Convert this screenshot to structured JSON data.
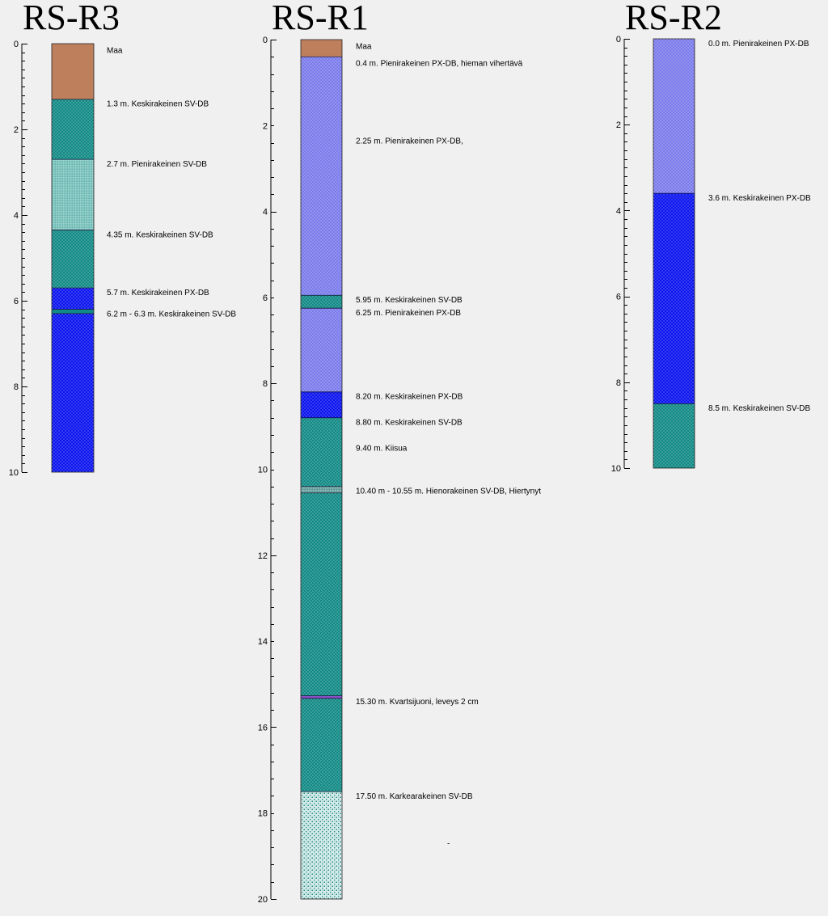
{
  "chart_data": [
    {
      "type": "borehole-log",
      "title": "RS-R3",
      "depth_range": [
        0,
        10
      ],
      "ticks": [
        0,
        2,
        4,
        6,
        8,
        10
      ],
      "layers": [
        {
          "from": 0,
          "to": 1.3,
          "color": "#be805c",
          "pattern": "none"
        },
        {
          "from": 1.3,
          "to": 2.7,
          "color": "#128a85",
          "pattern": "dots"
        },
        {
          "from": 2.7,
          "to": 4.35,
          "color": "#7fc5c0",
          "pattern": "fine"
        },
        {
          "from": 4.35,
          "to": 5.7,
          "color": "#128a85",
          "pattern": "dots"
        },
        {
          "from": 5.7,
          "to": 6.2,
          "color": "#0b14ee",
          "pattern": "dots"
        },
        {
          "from": 6.2,
          "to": 6.3,
          "color": "#128a85",
          "pattern": "none"
        },
        {
          "from": 6.3,
          "to": 10,
          "color": "#0b14ee",
          "pattern": "dots"
        }
      ],
      "annotations": [
        {
          "depth": 0.15,
          "text": "Maa"
        },
        {
          "depth": 1.4,
          "text": "1.3 m. Keskirakeinen SV-DB"
        },
        {
          "depth": 2.8,
          "text": "2.7 m. Pienirakeinen SV-DB"
        },
        {
          "depth": 4.45,
          "text": "4.35 m. Keskirakeinen SV-DB"
        },
        {
          "depth": 5.8,
          "text": "5.7 m. Keskirakeinen PX-DB"
        },
        {
          "depth": 6.3,
          "text": "6.2 m - 6.3 m. Keskirakeinen SV-DB"
        }
      ]
    },
    {
      "type": "borehole-log",
      "title": "RS-R1",
      "depth_range": [
        0,
        20
      ],
      "ticks": [
        0,
        2,
        4,
        6,
        8,
        10,
        12,
        14,
        16,
        18,
        20
      ],
      "layers": [
        {
          "from": 0,
          "to": 0.4,
          "color": "#be805c",
          "pattern": "none"
        },
        {
          "from": 0.4,
          "to": 5.95,
          "color": "#7b7bec",
          "pattern": "dots"
        },
        {
          "from": 5.95,
          "to": 6.25,
          "color": "#128a85",
          "pattern": "dots"
        },
        {
          "from": 6.25,
          "to": 8.2,
          "color": "#7b7bec",
          "pattern": "dots"
        },
        {
          "from": 8.2,
          "to": 8.8,
          "color": "#0b14ee",
          "pattern": "dots"
        },
        {
          "from": 8.8,
          "to": 10.4,
          "color": "#128a85",
          "pattern": "dots"
        },
        {
          "from": 10.4,
          "to": 10.55,
          "color": "#6fa5a2",
          "pattern": "fine"
        },
        {
          "from": 10.55,
          "to": 15.27,
          "color": "#128a85",
          "pattern": "dots"
        },
        {
          "from": 15.27,
          "to": 15.33,
          "color": "#8b4fc7",
          "pattern": "none"
        },
        {
          "from": 15.33,
          "to": 17.5,
          "color": "#128a85",
          "pattern": "dots"
        },
        {
          "from": 17.5,
          "to": 20,
          "color": "#d4ecea",
          "pattern": "coarse"
        }
      ],
      "annotations": [
        {
          "depth": 0.15,
          "text": "Maa"
        },
        {
          "depth": 0.55,
          "text": "0.4 m. Pienirakeinen PX-DB, hieman vihertävä"
        },
        {
          "depth": 2.35,
          "text": "2.25 m. Pienirakeinen PX-DB,"
        },
        {
          "depth": 6.05,
          "text": "5.95 m. Keskirakeinen SV-DB"
        },
        {
          "depth": 6.35,
          "text": "6.25 m. Pienirakeinen PX-DB"
        },
        {
          "depth": 8.3,
          "text": "8.20 m. Keskirakeinen PX-DB"
        },
        {
          "depth": 8.9,
          "text": "8.80 m. Keskirakeinen SV-DB"
        },
        {
          "depth": 9.5,
          "text": "9.40 m. Kiisua"
        },
        {
          "depth": 10.5,
          "text": "10.40 m - 10.55 m. Hienorakeinen SV-DB, Hiertynyt"
        },
        {
          "depth": 15.4,
          "text": "15.30 m. Kvartsijuoni, leveys 2 cm"
        },
        {
          "depth": 17.6,
          "text": "17.50 m. Karkearakeinen SV-DB"
        },
        {
          "depth": 18.7,
          "text": "-"
        }
      ]
    },
    {
      "type": "borehole-log",
      "title": "RS-R2",
      "depth_range": [
        0,
        10
      ],
      "ticks": [
        0,
        2,
        4,
        6,
        8,
        10
      ],
      "layers": [
        {
          "from": 0,
          "to": 3.6,
          "color": "#7b7bec",
          "pattern": "dots"
        },
        {
          "from": 3.6,
          "to": 8.5,
          "color": "#0b14ee",
          "pattern": "dots"
        },
        {
          "from": 8.5,
          "to": 10,
          "color": "#128a85",
          "pattern": "dots"
        }
      ],
      "annotations": [
        {
          "depth": 0.1,
          "text": "0.0 m. Pienirakeinen PX-DB"
        },
        {
          "depth": 3.7,
          "text": "3.6 m. Keskirakeinen PX-DB"
        },
        {
          "depth": 8.6,
          "text": "8.5 m. Keskirakeinen SV-DB"
        }
      ]
    }
  ]
}
